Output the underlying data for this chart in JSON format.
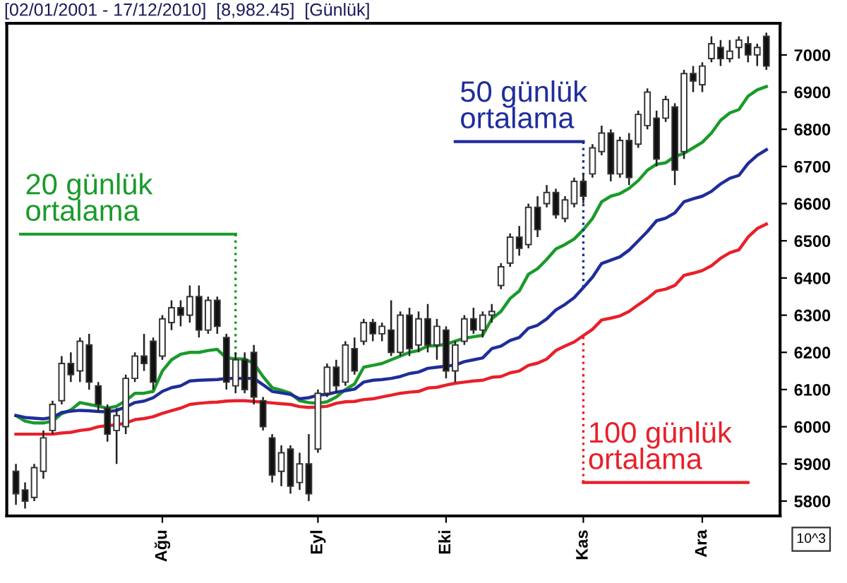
{
  "chart_data": {
    "type": "candlestick",
    "title": "[02/01/2001 - 17/12/2010]  [8,982.45]  [Günlük]",
    "categories": [
      null,
      null,
      null,
      null,
      null,
      null,
      null,
      null,
      null,
      null,
      null,
      null,
      null,
      null,
      null,
      null,
      "Ağu",
      null,
      null,
      null,
      null,
      null,
      null,
      null,
      null,
      null,
      null,
      null,
      null,
      null,
      null,
      null,
      null,
      "Eyl",
      null,
      null,
      null,
      null,
      null,
      null,
      null,
      null,
      null,
      null,
      null,
      null,
      null,
      "Eki",
      null,
      null,
      null,
      null,
      null,
      null,
      null,
      null,
      null,
      null,
      null,
      null,
      null,
      null,
      "Kas",
      null,
      null,
      null,
      null,
      null,
      null,
      null,
      null,
      null,
      null,
      null,
      null,
      "Ara",
      null,
      null,
      null,
      null,
      null,
      null,
      null
    ],
    "ohlc": [
      [
        5880,
        5900,
        5790,
        5820
      ],
      [
        5830,
        5850,
        5780,
        5800
      ],
      [
        5810,
        5900,
        5800,
        5890
      ],
      [
        5880,
        5990,
        5860,
        5970
      ],
      [
        5990,
        6070,
        5980,
        6060
      ],
      [
        6070,
        6190,
        6060,
        6170
      ],
      [
        6170,
        6200,
        6120,
        6140
      ],
      [
        6150,
        6240,
        6120,
        6230
      ],
      [
        6220,
        6250,
        6100,
        6120
      ],
      [
        6110,
        6120,
        6040,
        6060
      ],
      [
        6050,
        6060,
        5960,
        5980
      ],
      [
        5990,
        6050,
        5900,
        6030
      ],
      [
        6000,
        6140,
        5980,
        6130
      ],
      [
        6130,
        6200,
        6120,
        6190
      ],
      [
        6190,
        6250,
        6150,
        6170
      ],
      [
        6230,
        6240,
        6100,
        6120
      ],
      [
        6190,
        6300,
        6180,
        6290
      ],
      [
        6280,
        6340,
        6260,
        6320
      ],
      [
        6320,
        6340,
        6270,
        6300
      ],
      [
        6300,
        6380,
        6280,
        6350
      ],
      [
        6350,
        6380,
        6240,
        6260
      ],
      [
        6260,
        6350,
        6250,
        6340
      ],
      [
        6340,
        6350,
        6250,
        6270
      ],
      [
        6240,
        6250,
        6100,
        6120
      ],
      [
        6110,
        6200,
        6090,
        6180
      ],
      [
        6180,
        6200,
        6090,
        6100
      ],
      [
        6200,
        6220,
        6060,
        6080
      ],
      [
        6070,
        6080,
        5990,
        6000
      ],
      [
        5970,
        5980,
        5850,
        5870
      ],
      [
        5880,
        5950,
        5840,
        5930
      ],
      [
        5940,
        5950,
        5820,
        5840
      ],
      [
        5850,
        5930,
        5830,
        5900
      ],
      [
        5900,
        5980,
        5800,
        5820
      ],
      [
        5940,
        6100,
        5930,
        6090
      ],
      [
        6090,
        6170,
        6080,
        6160
      ],
      [
        6160,
        6180,
        6090,
        6110
      ],
      [
        6120,
        6230,
        6110,
        6220
      ],
      [
        6210,
        6240,
        6140,
        6150
      ],
      [
        6230,
        6290,
        6220,
        6280
      ],
      [
        6280,
        6290,
        6230,
        6250
      ],
      [
        6250,
        6280,
        6230,
        6270
      ],
      [
        6260,
        6340,
        6190,
        6200
      ],
      [
        6200,
        6310,
        6190,
        6300
      ],
      [
        6300,
        6320,
        6190,
        6210
      ],
      [
        6220,
        6310,
        6200,
        6290
      ],
      [
        6290,
        6330,
        6200,
        6220
      ],
      [
        6220,
        6290,
        6180,
        6270
      ],
      [
        6260,
        6270,
        6130,
        6150
      ],
      [
        6150,
        6230,
        6120,
        6220
      ],
      [
        6230,
        6300,
        6220,
        6290
      ],
      [
        6290,
        6320,
        6250,
        6260
      ],
      [
        6260,
        6310,
        6240,
        6300
      ],
      [
        6300,
        6330,
        6280,
        6310
      ],
      [
        6380,
        6440,
        6370,
        6430
      ],
      [
        6440,
        6520,
        6430,
        6510
      ],
      [
        6510,
        6540,
        6460,
        6480
      ],
      [
        6490,
        6600,
        6480,
        6590
      ],
      [
        6590,
        6620,
        6510,
        6530
      ],
      [
        6600,
        6650,
        6590,
        6630
      ],
      [
        6630,
        6640,
        6560,
        6570
      ],
      [
        6560,
        6620,
        6550,
        6610
      ],
      [
        6600,
        6670,
        6590,
        6660
      ],
      [
        6660,
        6680,
        6600,
        6620
      ],
      [
        6680,
        6760,
        6670,
        6750
      ],
      [
        6740,
        6810,
        6730,
        6790
      ],
      [
        6790,
        6800,
        6660,
        6680
      ],
      [
        6680,
        6780,
        6670,
        6770
      ],
      [
        6770,
        6790,
        6650,
        6670
      ],
      [
        6760,
        6850,
        6750,
        6840
      ],
      [
        6810,
        6910,
        6800,
        6900
      ],
      [
        6830,
        6850,
        6700,
        6720
      ],
      [
        6830,
        6890,
        6820,
        6880
      ],
      [
        6860,
        6870,
        6650,
        6690
      ],
      [
        6740,
        6960,
        6720,
        6950
      ],
      [
        6950,
        6970,
        6900,
        6930
      ],
      [
        6920,
        6980,
        6900,
        6970
      ],
      [
        6990,
        7050,
        6980,
        7030
      ],
      [
        7020,
        7040,
        6970,
        6990
      ],
      [
        6990,
        7040,
        6980,
        7010
      ],
      [
        7020,
        7050,
        6990,
        7040
      ],
      [
        7030,
        7050,
        6980,
        7000
      ],
      [
        7000,
        7030,
        6970,
        7020
      ],
      [
        7050,
        7060,
        6960,
        6970
      ]
    ],
    "series": [
      {
        "type": "line",
        "color": "#1a9a2a",
        "values": [
          6030,
          6015,
          6010,
          6010,
          6015,
          6035,
          6045,
          6065,
          6060,
          6055,
          6050,
          6055,
          6070,
          6090,
          6090,
          6095,
          6150,
          6180,
          6195,
          6200,
          6200,
          6205,
          6208,
          6185,
          6183,
          6182,
          6170,
          6135,
          6105,
          6098,
          6090,
          6070,
          6065,
          6063,
          6067,
          6080,
          6100,
          6115,
          6160,
          6165,
          6170,
          6180,
          6190,
          6200,
          6205,
          6217,
          6218,
          6222,
          6230,
          6238,
          6242,
          6246,
          6290,
          6310,
          6345,
          6365,
          6410,
          6425,
          6450,
          6478,
          6490,
          6505,
          6530,
          6560,
          6605,
          6620,
          6627,
          6641,
          6662,
          6690,
          6706,
          6710,
          6727,
          6735,
          6750,
          6765,
          6790,
          6824,
          6844,
          6853,
          6889,
          6906,
          6915
        ]
      },
      {
        "type": "line",
        "color": "#1f2d9a",
        "values": [
          6030,
          6025,
          6023,
          6021,
          6025,
          6038,
          6042,
          6044,
          6043,
          6041,
          6040,
          6044,
          6053,
          6065,
          6069,
          6078,
          6095,
          6105,
          6110,
          6123,
          6125,
          6126,
          6127,
          6130,
          6130,
          6130,
          6130,
          6113,
          6095,
          6091,
          6087,
          6075,
          6078,
          6085,
          6087,
          6093,
          6097,
          6101,
          6120,
          6125,
          6127,
          6130,
          6135,
          6143,
          6147,
          6157,
          6160,
          6163,
          6166,
          6175,
          6180,
          6185,
          6210,
          6217,
          6232,
          6240,
          6265,
          6273,
          6290,
          6314,
          6329,
          6347,
          6374,
          6402,
          6439,
          6448,
          6457,
          6475,
          6500,
          6525,
          6554,
          6561,
          6575,
          6605,
          6613,
          6620,
          6633,
          6653,
          6668,
          6676,
          6708,
          6730,
          6745
        ]
      },
      {
        "type": "line",
        "color": "#e8202a",
        "values": [
          5980,
          5980,
          5980,
          5980,
          5980,
          5983,
          5985,
          5990,
          5993,
          6000,
          6003,
          6005,
          6010,
          6019,
          6022,
          6027,
          6036,
          6043,
          6050,
          6060,
          6063,
          6065,
          6066,
          6069,
          6070,
          6070,
          6068,
          6066,
          6064,
          6062,
          6060,
          6054,
          6052,
          6053,
          6055,
          6063,
          6067,
          6068,
          6073,
          6075,
          6080,
          6085,
          6090,
          6093,
          6095,
          6104,
          6106,
          6112,
          6117,
          6120,
          6123,
          6125,
          6133,
          6135,
          6145,
          6150,
          6165,
          6171,
          6182,
          6205,
          6217,
          6228,
          6245,
          6262,
          6287,
          6292,
          6298,
          6310,
          6328,
          6345,
          6365,
          6370,
          6380,
          6407,
          6413,
          6420,
          6433,
          6453,
          6468,
          6476,
          6510,
          6533,
          6545
        ]
      }
    ],
    "annotations": [
      "20 günlük\nortalama",
      {
        "text": "50 günlük\nortalama",
        "x": "Kas",
        "y": 6374
      },
      {
        "text": "100 günlük\nortalama",
        "x": "Kas",
        "y": 6245
      },
      "10^3"
    ],
    "ylim": [
      5760,
      7085
    ],
    "yticks": [
      5800,
      5900,
      6000,
      6100,
      6200,
      6300,
      6400,
      6500,
      6600,
      6700,
      6800,
      6900,
      7000
    ],
    "grid": false,
    "legend": false
  }
}
